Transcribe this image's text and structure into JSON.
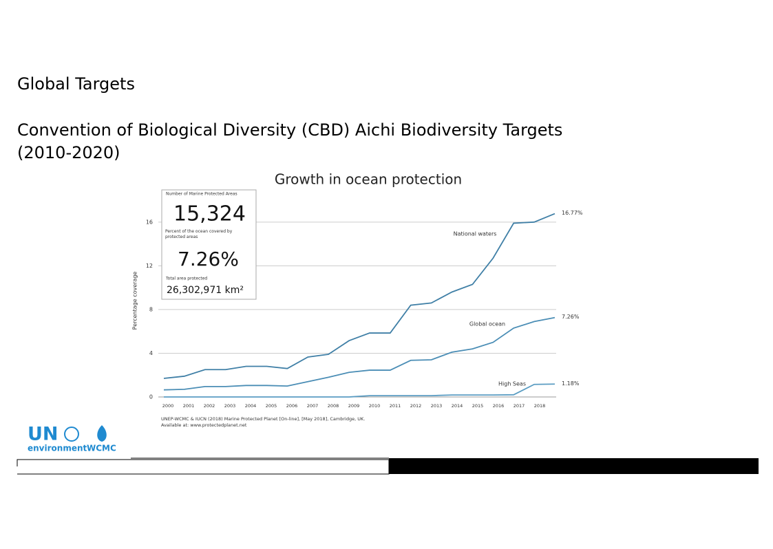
{
  "slide": {
    "heading": "Global Targets",
    "subheading": "Convention of Biological Diversity (CBD) Aichi Biodiversity Targets",
    "period": "(2010-2020)",
    "logo": {
      "un": "UN",
      "environment": "environment",
      "wcmc": "WCMC"
    }
  },
  "chart_data": {
    "type": "line",
    "title": "Growth in ocean protection",
    "y_label": "Percentage coverage",
    "categories": [
      "2000",
      "2001",
      "2002",
      "2003",
      "2004",
      "2005",
      "2006",
      "2007",
      "2008",
      "2009",
      "2010",
      "2011",
      "2012",
      "2013",
      "2014",
      "2015",
      "2016",
      "2017",
      "2018",
      null
    ],
    "series": [
      {
        "name": "National waters",
        "color": "#3f7fa6",
        "values": [
          1.7,
          1.9,
          2.5,
          2.5,
          2.8,
          2.8,
          2.6,
          3.65,
          3.9,
          5.15,
          5.85,
          5.85,
          8.4,
          8.6,
          9.6,
          10.3,
          12.7,
          15.9,
          16.0,
          16.77
        ],
        "value_labels": [
          null,
          null,
          null,
          null,
          null,
          null,
          null,
          null,
          null,
          null,
          null,
          null,
          null,
          null,
          null,
          null,
          null,
          null,
          null,
          "16.77%"
        ]
      },
      {
        "name": "Global ocean",
        "color": "#4a8db5",
        "values": [
          0.65,
          0.7,
          0.95,
          0.95,
          1.05,
          1.05,
          1.0,
          1.4,
          1.8,
          2.25,
          2.45,
          2.45,
          3.35,
          3.4,
          4.1,
          4.4,
          5.0,
          6.3,
          6.9,
          7.26
        ],
        "value_labels": [
          null,
          null,
          null,
          null,
          null,
          null,
          null,
          null,
          null,
          null,
          null,
          null,
          null,
          null,
          null,
          null,
          null,
          null,
          null,
          "7.26%"
        ]
      },
      {
        "name": "High Seas",
        "color": "#5a9cc2",
        "values": [
          0,
          0,
          0,
          0,
          0,
          0,
          0,
          0,
          0,
          0,
          0.12,
          0.12,
          0.12,
          0.12,
          0.18,
          0.18,
          0.18,
          0.2,
          1.15,
          1.18
        ],
        "value_labels": [
          null,
          null,
          null,
          null,
          null,
          null,
          null,
          null,
          null,
          null,
          null,
          null,
          null,
          null,
          null,
          null,
          null,
          null,
          null,
          "1.18%"
        ]
      }
    ],
    "ylim": [
      0,
      17.5
    ],
    "yticks": [
      0,
      4,
      8,
      12,
      16
    ],
    "grid": true,
    "info_box": {
      "mpa_label": "Number of Marine Protected Areas",
      "mpa_value": "15,324",
      "percent_label": "Percent of the ocean covered by protected areas",
      "percent_value": "7.26%",
      "area_label": "Total area protected",
      "area_value": "26,302,971 km²"
    },
    "source": [
      "UNEP-WCMC & IUCN (2018) Marine Protected Planet [On-line], [May 2018], Cambridge, UK.",
      "Available at: www.protectedplanet.net"
    ]
  }
}
